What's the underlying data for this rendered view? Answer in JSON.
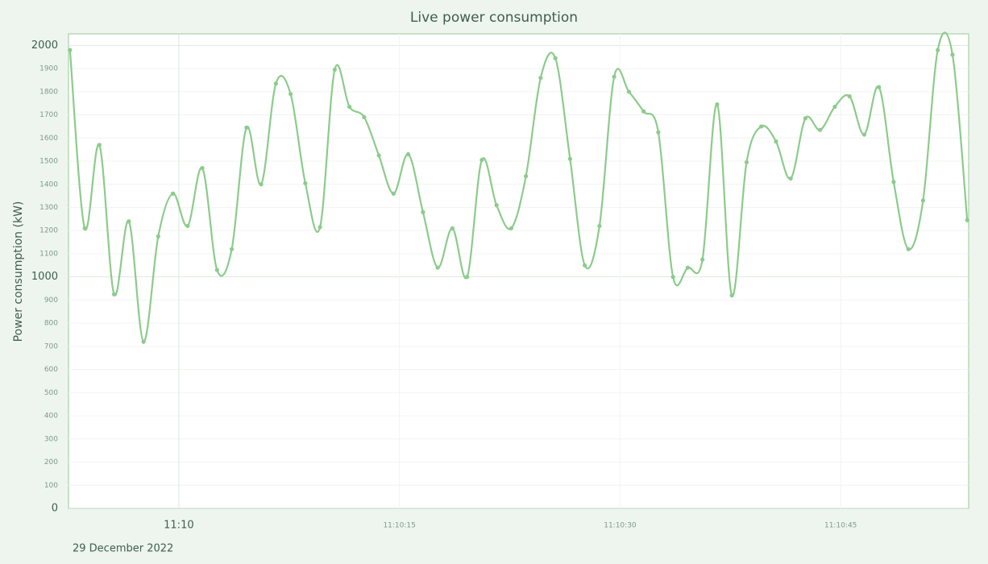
{
  "chart_data": {
    "type": "line",
    "title": "Live power consumption",
    "y_label": "Power consumption (kW)",
    "date_label": "29 December 2022",
    "color": "#8ccb8c",
    "x": [
      -7.4,
      -6.4,
      -5.4,
      -4.4,
      -3.4,
      -2.4,
      -1.4,
      -0.4,
      0.6,
      1.6,
      2.6,
      3.6,
      4.6,
      5.6,
      6.6,
      7.6,
      8.6,
      9.6,
      10.6,
      11.6,
      12.6,
      13.6,
      14.6,
      15.6,
      16.6,
      17.6,
      18.6,
      19.6,
      20.6,
      21.6,
      22.6,
      23.6,
      24.6,
      25.6,
      26.6,
      27.6,
      28.6,
      29.6,
      30.6,
      31.6,
      32.6,
      33.6,
      34.6,
      35.6,
      36.6,
      37.6,
      38.6,
      39.6,
      40.6,
      41.6,
      42.6,
      43.6,
      44.6,
      45.6,
      46.6,
      47.6,
      48.6,
      49.6,
      50.6,
      51.6,
      52.6,
      53.6
    ],
    "values": [
      1980,
      1210,
      1570,
      925,
      1240,
      720,
      1175,
      1360,
      1220,
      1470,
      1030,
      1120,
      1645,
      1400,
      1835,
      1790,
      1405,
      1215,
      1895,
      1735,
      1690,
      1525,
      1360,
      1530,
      1280,
      1040,
      1210,
      1000,
      1505,
      1310,
      1210,
      1435,
      1860,
      1945,
      1510,
      1050,
      1220,
      1865,
      1800,
      1715,
      1625,
      1000,
      1040,
      1075,
      1745,
      920,
      1495,
      1650,
      1585,
      1425,
      1685,
      1635,
      1735,
      1780,
      1615,
      1820,
      1410,
      1120,
      1330,
      1980,
      1960,
      1245
    ],
    "xlim": [
      -7.5,
      53.7
    ],
    "xticks": [
      {
        "value": 0,
        "label": "11:10"
      },
      {
        "value": 15,
        "label": "11:10:15"
      },
      {
        "value": 30,
        "label": "11:10:30"
      },
      {
        "value": 45,
        "label": "11:10:45"
      }
    ],
    "ylim": [
      0,
      2050
    ],
    "yticks": [
      0,
      100,
      200,
      300,
      400,
      500,
      600,
      700,
      800,
      900,
      1000,
      1100,
      1200,
      1300,
      1400,
      1500,
      1600,
      1700,
      1800,
      1900,
      2000
    ],
    "grid": true
  }
}
